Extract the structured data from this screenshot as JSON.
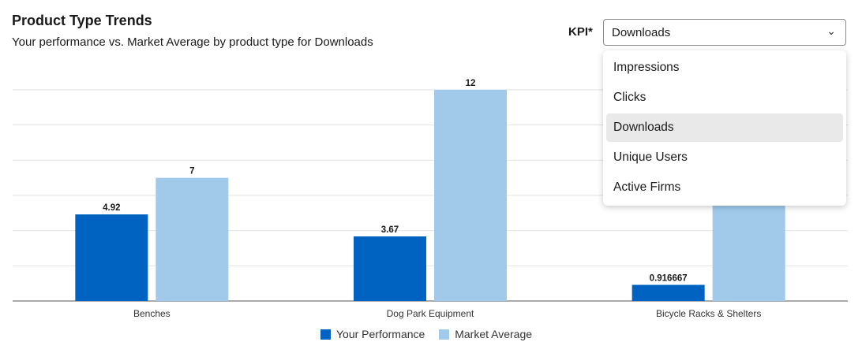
{
  "header": {
    "title": "Product Type Trends",
    "subtitle": "Your performance vs. Market Average by product type for Downloads"
  },
  "kpi": {
    "label": "KPI*",
    "selected": "Downloads",
    "options": [
      "Impressions",
      "Clicks",
      "Downloads",
      "Unique Users",
      "Active Firms"
    ],
    "selected_index": 2
  },
  "chart_data": {
    "type": "bar",
    "categories": [
      "Benches",
      "Dog Park Equipment",
      "Bicycle Racks & Shelters"
    ],
    "series": [
      {
        "name": "Your Performance",
        "values": [
          4.92,
          3.67,
          0.916667
        ],
        "labels": [
          "4.92",
          "3.67",
          "0.916667"
        ],
        "color": "#0063c1"
      },
      {
        "name": "Market Average",
        "values": [
          7,
          12,
          6
        ],
        "labels": [
          "7",
          "12",
          null
        ],
        "color": "#a0c9ea"
      }
    ],
    "ylim": [
      0,
      12
    ],
    "grid": true,
    "legend": "bottom"
  },
  "colors": {
    "primary_bar": "#0063c1",
    "secondary_bar": "#a0c9ea",
    "menu_selected": "#e9e9e9"
  },
  "icons": {
    "chevron": "chevron-down-icon"
  }
}
